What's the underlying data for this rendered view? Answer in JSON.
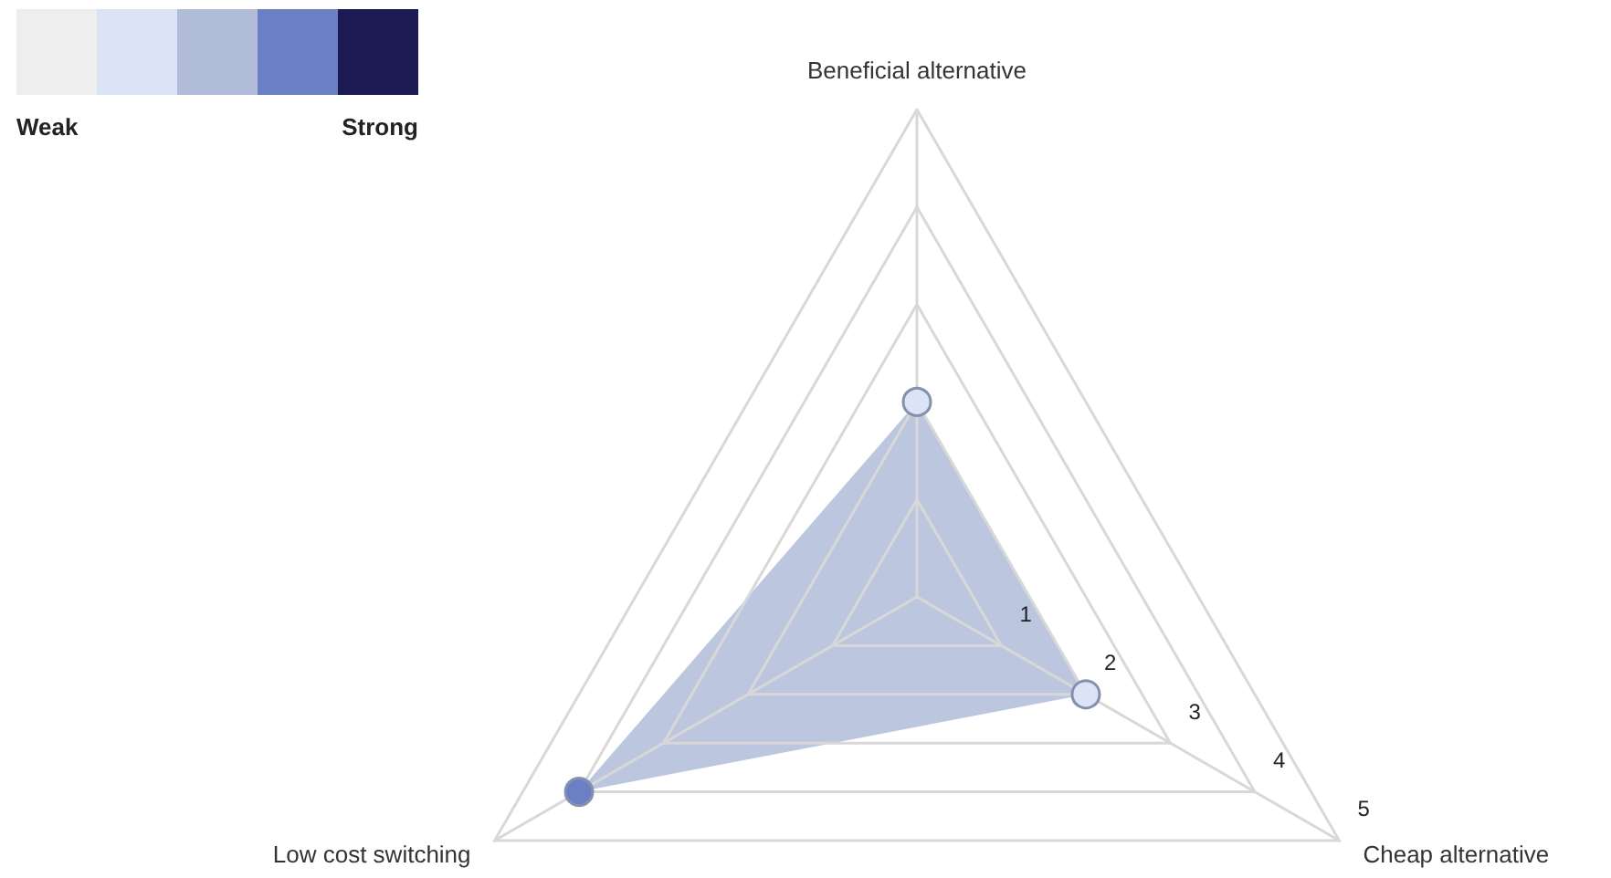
{
  "chart_data": {
    "type": "radar",
    "categories": [
      "Beneficial alternative",
      "Cheap alternative",
      "Low cost switching"
    ],
    "series": [
      {
        "color": "#b0bcd8",
        "values": [
          2,
          2,
          4
        ],
        "colors": [
          "#dbe4f6",
          "#dbe4f6",
          "#6a7fc4"
        ]
      }
    ],
    "ylim": [
      0,
      5
    ],
    "yticks": [
      1,
      2,
      3,
      4,
      5
    ],
    "colors": [
      "#eeeeee",
      "#dbe4f6",
      "#b0bcd8",
      "#6a7fc4",
      "#1c1a52"
    ],
    "annotations": [
      "Weak",
      "Strong"
    ],
    "marker": "circle",
    "grid": true
  }
}
